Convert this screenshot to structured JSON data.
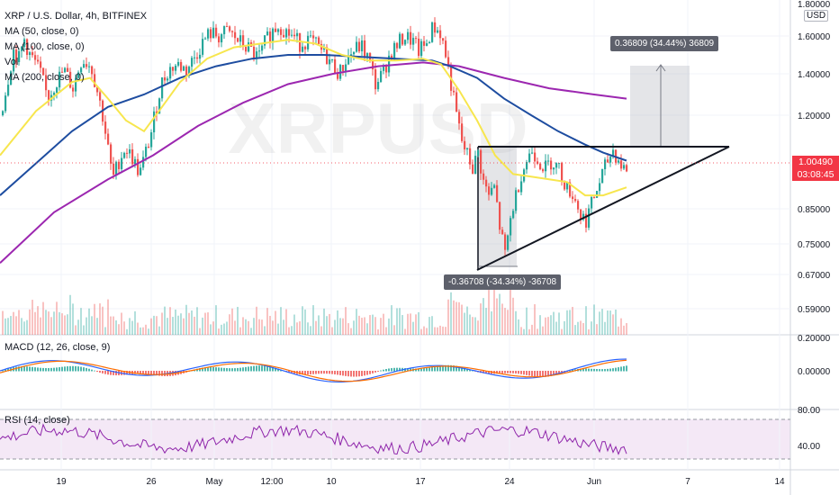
{
  "chart_data": [
    {
      "type": "candlestick",
      "title": "XRP / U.S. Dollar, 4h, BITFINEX",
      "symbol_watermark": "XRPUSD",
      "y_unit": "USD",
      "y_ticks": [
        "1.80000",
        "1.60000",
        "1.40000",
        "1.20000",
        "1.00490",
        "0.85000",
        "0.75000",
        "0.67000",
        "0.59000"
      ],
      "x_ticks": [
        "19",
        "26",
        "May",
        "12:00",
        "10",
        "17",
        "24",
        "Jun",
        "7",
        "14"
      ],
      "last_price": "1.00490",
      "countdown": "03:08:45",
      "indicators": [
        "MA (50, close, 0)",
        "MA (100, close, 0)",
        "Vol",
        "MA (200, close, 0)"
      ],
      "price_path": [
        [
          0,
          1.2
        ],
        [
          8,
          1.38
        ],
        [
          14,
          1.52
        ],
        [
          20,
          1.48
        ],
        [
          26,
          1.58
        ],
        [
          32,
          1.5
        ],
        [
          38,
          1.46
        ],
        [
          44,
          1.4
        ],
        [
          52,
          1.28
        ],
        [
          60,
          1.35
        ],
        [
          70,
          1.42
        ],
        [
          80,
          1.33
        ],
        [
          90,
          1.48
        ],
        [
          100,
          1.44
        ],
        [
          108,
          1.3
        ],
        [
          114,
          1.18
        ],
        [
          120,
          1.05
        ],
        [
          124,
          0.96
        ],
        [
          130,
          1.02
        ],
        [
          138,
          1.08
        ],
        [
          146,
          1.04
        ],
        [
          154,
          0.98
        ],
        [
          160,
          1.05
        ],
        [
          166,
          1.12
        ],
        [
          172,
          1.22
        ],
        [
          178,
          1.35
        ],
        [
          186,
          1.42
        ],
        [
          196,
          1.45
        ],
        [
          206,
          1.42
        ],
        [
          214,
          1.48
        ],
        [
          222,
          1.55
        ],
        [
          232,
          1.62
        ],
        [
          242,
          1.6
        ],
        [
          252,
          1.63
        ],
        [
          262,
          1.58
        ],
        [
          270,
          1.55
        ],
        [
          278,
          1.52
        ],
        [
          286,
          1.48
        ],
        [
          294,
          1.57
        ],
        [
          300,
          1.62
        ],
        [
          308,
          1.67
        ],
        [
          316,
          1.63
        ],
        [
          324,
          1.6
        ],
        [
          332,
          1.56
        ],
        [
          340,
          1.58
        ],
        [
          350,
          1.55
        ],
        [
          360,
          1.5
        ],
        [
          368,
          1.45
        ],
        [
          376,
          1.4
        ],
        [
          384,
          1.48
        ],
        [
          392,
          1.52
        ],
        [
          400,
          1.55
        ],
        [
          408,
          1.48
        ],
        [
          416,
          1.35
        ],
        [
          424,
          1.4
        ],
        [
          432,
          1.5
        ],
        [
          440,
          1.55
        ],
        [
          448,
          1.6
        ],
        [
          456,
          1.58
        ],
        [
          464,
          1.52
        ],
        [
          472,
          1.55
        ],
        [
          480,
          1.66
        ],
        [
          488,
          1.62
        ],
        [
          494,
          1.5
        ],
        [
          500,
          1.35
        ],
        [
          506,
          1.2
        ],
        [
          512,
          1.1
        ],
        [
          518,
          1.05
        ],
        [
          524,
          1.0
        ],
        [
          530,
          1.06
        ],
        [
          536,
          0.95
        ],
        [
          542,
          0.9
        ],
        [
          548,
          0.93
        ],
        [
          554,
          0.8
        ],
        [
          560,
          0.72
        ],
        [
          566,
          0.82
        ],
        [
          572,
          0.9
        ],
        [
          578,
          0.98
        ],
        [
          584,
          1.03
        ],
        [
          590,
          1.07
        ],
        [
          596,
          1.04
        ],
        [
          604,
          1.0
        ],
        [
          612,
          1.03
        ],
        [
          620,
          1.0
        ],
        [
          628,
          0.93
        ],
        [
          636,
          0.9
        ],
        [
          644,
          0.83
        ],
        [
          650,
          0.82
        ],
        [
          656,
          0.87
        ],
        [
          662,
          0.92
        ],
        [
          668,
          0.98
        ],
        [
          674,
          1.03
        ],
        [
          680,
          1.07
        ],
        [
          686,
          1.03
        ],
        [
          692,
          1.0
        ],
        [
          696,
          1.0
        ]
      ],
      "ma50": [
        [
          0,
          1.05
        ],
        [
          40,
          1.22
        ],
        [
          80,
          1.36
        ],
        [
          100,
          1.38
        ],
        [
          120,
          1.28
        ],
        [
          140,
          1.18
        ],
        [
          160,
          1.14
        ],
        [
          180,
          1.24
        ],
        [
          200,
          1.36
        ],
        [
          230,
          1.48
        ],
        [
          260,
          1.54
        ],
        [
          290,
          1.56
        ],
        [
          320,
          1.58
        ],
        [
          350,
          1.56
        ],
        [
          380,
          1.5
        ],
        [
          410,
          1.47
        ],
        [
          440,
          1.47
        ],
        [
          470,
          1.48
        ],
        [
          490,
          1.45
        ],
        [
          510,
          1.32
        ],
        [
          530,
          1.18
        ],
        [
          550,
          1.05
        ],
        [
          570,
          0.98
        ],
        [
          590,
          0.97
        ],
        [
          610,
          0.96
        ],
        [
          630,
          0.95
        ],
        [
          650,
          0.9
        ],
        [
          670,
          0.9
        ],
        [
          696,
          0.93
        ]
      ],
      "ma100": [
        [
          0,
          0.9
        ],
        [
          40,
          1.02
        ],
        [
          80,
          1.14
        ],
        [
          120,
          1.24
        ],
        [
          160,
          1.3
        ],
        [
          200,
          1.38
        ],
        [
          240,
          1.44
        ],
        [
          280,
          1.48
        ],
        [
          320,
          1.5
        ],
        [
          360,
          1.5
        ],
        [
          400,
          1.49
        ],
        [
          440,
          1.48
        ],
        [
          480,
          1.47
        ],
        [
          500,
          1.44
        ],
        [
          530,
          1.38
        ],
        [
          560,
          1.28
        ],
        [
          590,
          1.2
        ],
        [
          620,
          1.14
        ],
        [
          650,
          1.09
        ],
        [
          670,
          1.06
        ],
        [
          696,
          1.03
        ]
      ],
      "ma200": [
        [
          0,
          0.7
        ],
        [
          60,
          0.84
        ],
        [
          120,
          0.96
        ],
        [
          170,
          1.05
        ],
        [
          220,
          1.16
        ],
        [
          270,
          1.26
        ],
        [
          320,
          1.35
        ],
        [
          370,
          1.4
        ],
        [
          420,
          1.44
        ],
        [
          470,
          1.46
        ],
        [
          510,
          1.44
        ],
        [
          560,
          1.38
        ],
        [
          610,
          1.33
        ],
        [
          660,
          1.3
        ],
        [
          696,
          1.28
        ]
      ],
      "annotations": {
        "measure_up_label": "0.36809 (34.44%) 36809",
        "measure_down_label": "-0.36708 (-34.34%) -36708"
      }
    },
    {
      "type": "line",
      "title": "MACD (12, 26, close, 9)",
      "y_ticks": [
        "0.20000",
        "0.00000"
      ]
    },
    {
      "type": "line",
      "title": "RSI (14, close)",
      "y_ticks": [
        "80.00",
        "40.00"
      ],
      "band": [
        70,
        30
      ]
    }
  ],
  "colors": {
    "ma50": "#f7e64e",
    "ma100": "#1e4da0",
    "ma200": "#9c27b0",
    "candle_up": "#26a69a",
    "candle_down": "#ef5350",
    "rsi_line": "#8e24aa",
    "rsi_band": "#f3e5f5",
    "macd_line": "#2962ff",
    "signal_line": "#ff6d00"
  }
}
